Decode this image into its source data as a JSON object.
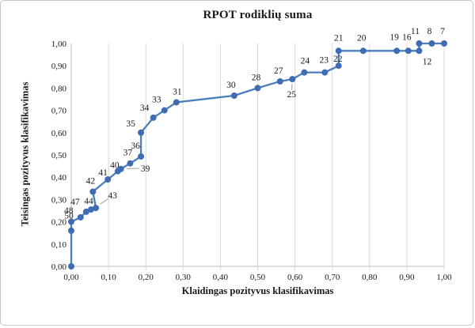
{
  "window": {
    "background": "#ffffff",
    "border_color": "#c7c7c7"
  },
  "chart_data": {
    "type": "line",
    "title": "RPOT rodiklių suma",
    "xlabel": "Klaidingas pozityvus klasifikavimas",
    "ylabel": "Teisingas pozityvus klasifikavimas",
    "xlim": [
      0,
      1
    ],
    "ylim": [
      0,
      1
    ],
    "grid": "vertical",
    "legend": "none",
    "x_tick_labels": [
      "0,00",
      "0,10",
      "0,20",
      "0,30",
      "0,40",
      "0,50",
      "0,60",
      "0,70",
      "0,80",
      "0,90",
      "1,00"
    ],
    "y_tick_labels": [
      "0,00",
      "0,10",
      "0,20",
      "0,30",
      "0,40",
      "0,50",
      "0,60",
      "0,70",
      "0,80",
      "0,90",
      "1,00"
    ],
    "line_color": "#4a7ebd",
    "marker_color": "#3f6cb3",
    "grid_color": "#d9d9d9",
    "axis_color": "#bfbfbf",
    "leader_color": "#a0a0a0",
    "label_color": "#1a1a1a",
    "points": [
      {
        "x": 0.0,
        "y": 0.0,
        "label": ""
      },
      {
        "x": 0.0,
        "y": 0.16,
        "label": ""
      },
      {
        "x": 0.0,
        "y": 0.2,
        "label": "50",
        "lx": -3,
        "ly": -8
      },
      {
        "x": 0.025,
        "y": 0.22,
        "label": "48",
        "lx": -15,
        "ly": -9
      },
      {
        "x": 0.04,
        "y": 0.245,
        "label": "47",
        "lx": -14,
        "ly": -13
      },
      {
        "x": 0.053,
        "y": 0.255,
        "label": "44",
        "lx": -3,
        "ly": -11
      },
      {
        "x": 0.066,
        "y": 0.262,
        "label": "43",
        "lx": 21,
        "ly": -16,
        "leader": true
      },
      {
        "x": 0.058,
        "y": 0.335,
        "label": "42",
        "lx": -3,
        "ly": -14
      },
      {
        "x": 0.098,
        "y": 0.39,
        "label": "41",
        "lx": -6,
        "ly": -9
      },
      {
        "x": 0.125,
        "y": 0.427,
        "label": "40",
        "lx": -4,
        "ly": -8
      },
      {
        "x": 0.133,
        "y": 0.437,
        "label": "39",
        "lx": 31,
        "ly": -1,
        "leader": true
      },
      {
        "x": 0.158,
        "y": 0.462,
        "label": "37",
        "lx": -3,
        "ly": -14
      },
      {
        "x": 0.187,
        "y": 0.493,
        "label": "36",
        "lx": -7,
        "ly": -14
      },
      {
        "x": 0.187,
        "y": 0.6,
        "label": "35",
        "lx": -13,
        "ly": -12
      },
      {
        "x": 0.22,
        "y": 0.667,
        "label": "34",
        "lx": -11,
        "ly": -13
      },
      {
        "x": 0.25,
        "y": 0.7,
        "label": "33",
        "lx": -10,
        "ly": -14
      },
      {
        "x": 0.282,
        "y": 0.736,
        "label": "31",
        "lx": 1,
        "ly": -14
      },
      {
        "x": 0.437,
        "y": 0.766,
        "label": "30",
        "lx": -4,
        "ly": -14
      },
      {
        "x": 0.5,
        "y": 0.8,
        "label": "28",
        "lx": -2,
        "ly": -14
      },
      {
        "x": 0.56,
        "y": 0.83,
        "label": "27",
        "lx": -2,
        "ly": -14
      },
      {
        "x": 0.593,
        "y": 0.84,
        "label": "25",
        "lx": -1,
        "ly": 19,
        "leader": true
      },
      {
        "x": 0.625,
        "y": 0.87,
        "label": "24",
        "lx": 1,
        "ly": -15
      },
      {
        "x": 0.68,
        "y": 0.87,
        "label": "23",
        "lx": -1,
        "ly": -16
      },
      {
        "x": 0.717,
        "y": 0.9,
        "label": "22",
        "lx": -1,
        "ly": -9
      },
      {
        "x": 0.717,
        "y": 0.967,
        "label": "21",
        "lx": 0,
        "ly": -17
      },
      {
        "x": 0.783,
        "y": 0.967,
        "label": "20",
        "lx": -2,
        "ly": -17
      },
      {
        "x": 0.873,
        "y": 0.967,
        "label": "19",
        "lx": -3,
        "ly": -18
      },
      {
        "x": 0.904,
        "y": 0.967,
        "label": "16",
        "lx": -2,
        "ly": -18
      },
      {
        "x": 0.933,
        "y": 0.967,
        "label": "12",
        "lx": 10,
        "ly": 13
      },
      {
        "x": 0.933,
        "y": 1.0,
        "label": "11",
        "lx": -5,
        "ly": -16
      },
      {
        "x": 0.967,
        "y": 1.0,
        "label": "8",
        "lx": -3,
        "ly": -16
      },
      {
        "x": 1.0,
        "y": 1.0,
        "label": "7",
        "lx": -2,
        "ly": -16
      }
    ]
  }
}
